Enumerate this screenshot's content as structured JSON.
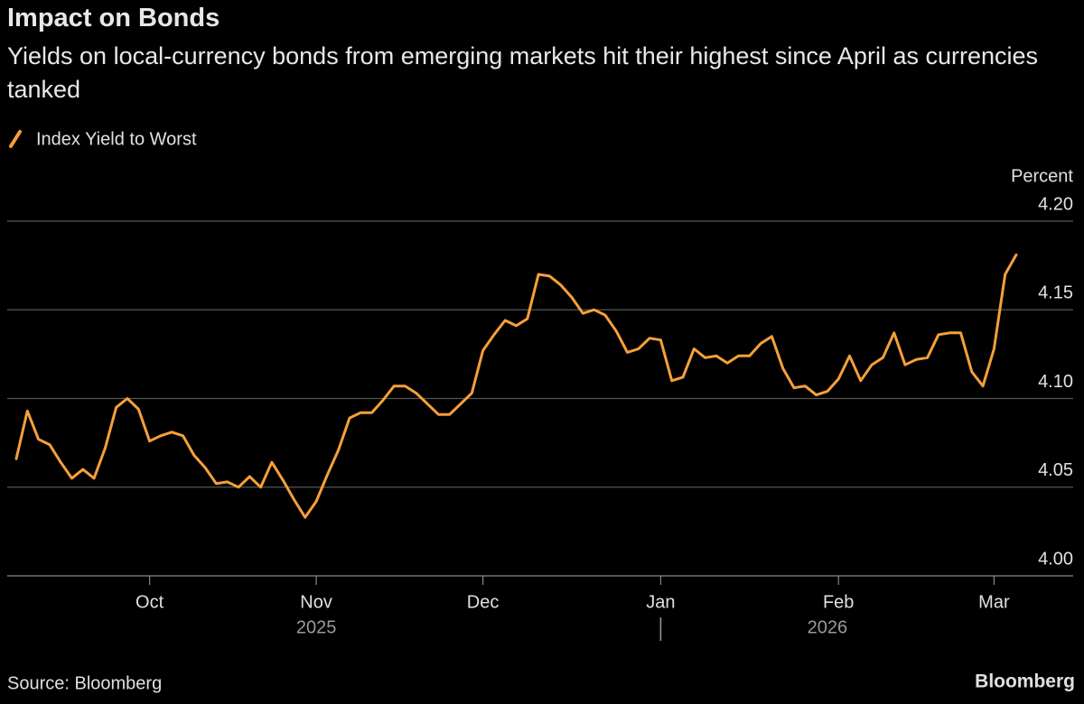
{
  "chart_data": {
    "type": "line",
    "title": "Impact on Bonds",
    "subtitle": "Yields on local-currency bonds from emerging markets hit their highest since April as currencies tanked",
    "y_label": "Percent",
    "source": "Source: Bloomberg",
    "brand": "Bloomberg",
    "categories": [
      null,
      null,
      null,
      null,
      null,
      null,
      null,
      null,
      null,
      null,
      null,
      null,
      "Oct",
      null,
      null,
      null,
      null,
      null,
      null,
      null,
      null,
      null,
      null,
      null,
      null,
      null,
      null,
      "Nov",
      null,
      null,
      null,
      null,
      null,
      null,
      null,
      null,
      null,
      null,
      null,
      null,
      null,
      null,
      "Dec",
      null,
      null,
      null,
      null,
      null,
      null,
      null,
      null,
      null,
      null,
      null,
      null,
      null,
      null,
      null,
      "Jan",
      null,
      null,
      null,
      null,
      null,
      null,
      null,
      null,
      null,
      null,
      null,
      null,
      null,
      null,
      null,
      "Feb",
      null,
      null,
      null,
      null,
      null,
      null,
      null,
      null,
      null,
      null,
      null,
      null,
      null,
      "Mar",
      null,
      null
    ],
    "year_labels": [
      "2025",
      "2026"
    ],
    "series": [
      {
        "name": "Index Yield to Worst",
        "color": "#f5a03a",
        "values": [
          4.066,
          4.093,
          4.077,
          4.074,
          4.064,
          4.055,
          4.06,
          4.055,
          4.072,
          4.095,
          4.1,
          4.094,
          4.076,
          4.079,
          4.081,
          4.079,
          4.068,
          4.061,
          4.052,
          4.053,
          4.05,
          4.056,
          4.05,
          4.064,
          4.054,
          4.043,
          4.033,
          4.042,
          4.057,
          4.071,
          4.089,
          4.092,
          4.092,
          4.099,
          4.107,
          4.107,
          4.103,
          4.097,
          4.091,
          4.091,
          4.097,
          4.103,
          4.127,
          4.136,
          4.144,
          4.141,
          4.145,
          4.17,
          4.169,
          4.164,
          4.157,
          4.148,
          4.15,
          4.147,
          4.138,
          4.126,
          4.128,
          4.134,
          4.133,
          4.11,
          4.112,
          4.128,
          4.123,
          4.124,
          4.12,
          4.124,
          4.124,
          4.131,
          4.135,
          4.117,
          4.106,
          4.107,
          4.102,
          4.104,
          4.111,
          4.124,
          4.11,
          4.119,
          4.123,
          4.137,
          4.119,
          4.122,
          4.123,
          4.136,
          4.137,
          4.137,
          4.115,
          4.107,
          4.128,
          4.17,
          4.181
        ]
      }
    ],
    "ylim": [
      4.0,
      4.2
    ],
    "yticks": [
      {
        "value": 4.0,
        "label": "4.00"
      },
      4.05,
      {
        "value": 4.1,
        "label": "4.10"
      },
      4.15,
      {
        "value": 4.2,
        "label": "4.20"
      }
    ],
    "grid": true,
    "legend": "top-left"
  }
}
